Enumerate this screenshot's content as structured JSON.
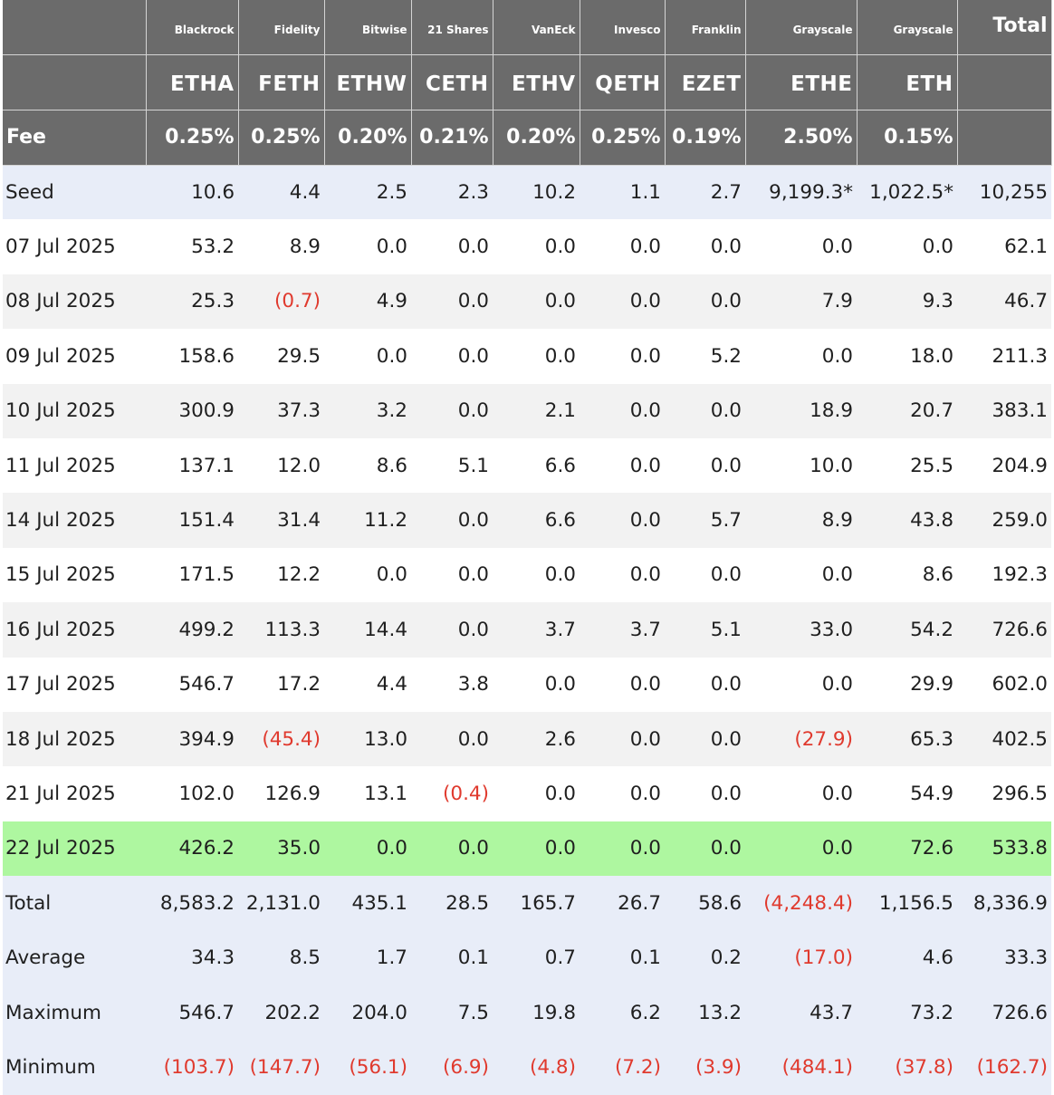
{
  "columns": [
    {
      "issuer": "Blackrock",
      "ticker": "ETHA",
      "fee": "0.25%"
    },
    {
      "issuer": "Fidelity",
      "ticker": "FETH",
      "fee": "0.25%"
    },
    {
      "issuer": "Bitwise",
      "ticker": "ETHW",
      "fee": "0.20%"
    },
    {
      "issuer": "21 Shares",
      "ticker": "CETH",
      "fee": "0.21%"
    },
    {
      "issuer": "VanEck",
      "ticker": "ETHV",
      "fee": "0.20%"
    },
    {
      "issuer": "Invesco",
      "ticker": "QETH",
      "fee": "0.25%"
    },
    {
      "issuer": "Franklin",
      "ticker": "EZET",
      "fee": "0.19%"
    },
    {
      "issuer": "Grayscale",
      "ticker": "ETHE",
      "fee": "2.50%"
    },
    {
      "issuer": "Grayscale",
      "ticker": "ETH",
      "fee": "0.15%"
    }
  ],
  "total_header": "Total",
  "fee_label": "Fee",
  "highlight_color": "#aef7a0",
  "negative_color": "#e03a2e",
  "rows": [
    {
      "label": "Seed",
      "kind": "seed",
      "values": [
        "10.6",
        "4.4",
        "2.5",
        "2.3",
        "10.2",
        "1.1",
        "2.7",
        "9,199.3*",
        "1,022.5*",
        "10,255"
      ]
    },
    {
      "label": "07 Jul 2025",
      "kind": "odd",
      "values": [
        "53.2",
        "8.9",
        "0.0",
        "0.0",
        "0.0",
        "0.0",
        "0.0",
        "0.0",
        "0.0",
        "62.1"
      ]
    },
    {
      "label": "08 Jul 2025",
      "kind": "even",
      "values": [
        "25.3",
        "(0.7)",
        "4.9",
        "0.0",
        "0.0",
        "0.0",
        "0.0",
        "7.9",
        "9.3",
        "46.7"
      ]
    },
    {
      "label": "09 Jul 2025",
      "kind": "odd",
      "values": [
        "158.6",
        "29.5",
        "0.0",
        "0.0",
        "0.0",
        "0.0",
        "5.2",
        "0.0",
        "18.0",
        "211.3"
      ]
    },
    {
      "label": "10 Jul 2025",
      "kind": "even",
      "values": [
        "300.9",
        "37.3",
        "3.2",
        "0.0",
        "2.1",
        "0.0",
        "0.0",
        "18.9",
        "20.7",
        "383.1"
      ]
    },
    {
      "label": "11 Jul 2025",
      "kind": "odd",
      "values": [
        "137.1",
        "12.0",
        "8.6",
        "5.1",
        "6.6",
        "0.0",
        "0.0",
        "10.0",
        "25.5",
        "204.9"
      ]
    },
    {
      "label": "14 Jul 2025",
      "kind": "even",
      "values": [
        "151.4",
        "31.4",
        "11.2",
        "0.0",
        "6.6",
        "0.0",
        "5.7",
        "8.9",
        "43.8",
        "259.0"
      ]
    },
    {
      "label": "15 Jul 2025",
      "kind": "odd",
      "values": [
        "171.5",
        "12.2",
        "0.0",
        "0.0",
        "0.0",
        "0.0",
        "0.0",
        "0.0",
        "8.6",
        "192.3"
      ]
    },
    {
      "label": "16 Jul 2025",
      "kind": "even",
      "values": [
        "499.2",
        "113.3",
        "14.4",
        "0.0",
        "3.7",
        "3.7",
        "5.1",
        "33.0",
        "54.2",
        "726.6"
      ]
    },
    {
      "label": "17 Jul 2025",
      "kind": "odd",
      "values": [
        "546.7",
        "17.2",
        "4.4",
        "3.8",
        "0.0",
        "0.0",
        "0.0",
        "0.0",
        "29.9",
        "602.0"
      ]
    },
    {
      "label": "18 Jul 2025",
      "kind": "even",
      "values": [
        "394.9",
        "(45.4)",
        "13.0",
        "0.0",
        "2.6",
        "0.0",
        "0.0",
        "(27.9)",
        "65.3",
        "402.5"
      ]
    },
    {
      "label": "21 Jul 2025",
      "kind": "odd",
      "values": [
        "102.0",
        "126.9",
        "13.1",
        "(0.4)",
        "0.0",
        "0.0",
        "0.0",
        "0.0",
        "54.9",
        "296.5"
      ]
    },
    {
      "label": "22 Jul 2025",
      "kind": "hl",
      "values": [
        "426.2",
        "35.0",
        "0.0",
        "0.0",
        "0.0",
        "0.0",
        "0.0",
        "0.0",
        "72.6",
        "533.8"
      ]
    },
    {
      "label": "Total",
      "kind": "stat",
      "values": [
        "8,583.2",
        "2,131.0",
        "435.1",
        "28.5",
        "165.7",
        "26.7",
        "58.6",
        "(4,248.4)",
        "1,156.5",
        "8,336.9"
      ]
    },
    {
      "label": "Average",
      "kind": "stat",
      "values": [
        "34.3",
        "8.5",
        "1.7",
        "0.1",
        "0.7",
        "0.1",
        "0.2",
        "(17.0)",
        "4.6",
        "33.3"
      ]
    },
    {
      "label": "Maximum",
      "kind": "stat",
      "values": [
        "546.7",
        "202.2",
        "204.0",
        "7.5",
        "19.8",
        "6.2",
        "13.2",
        "43.7",
        "73.2",
        "726.6"
      ]
    },
    {
      "label": "Minimum",
      "kind": "stat",
      "values": [
        "(103.7)",
        "(147.7)",
        "(56.1)",
        "(6.9)",
        "(4.8)",
        "(7.2)",
        "(3.9)",
        "(484.1)",
        "(37.8)",
        "(162.7)"
      ]
    }
  ]
}
